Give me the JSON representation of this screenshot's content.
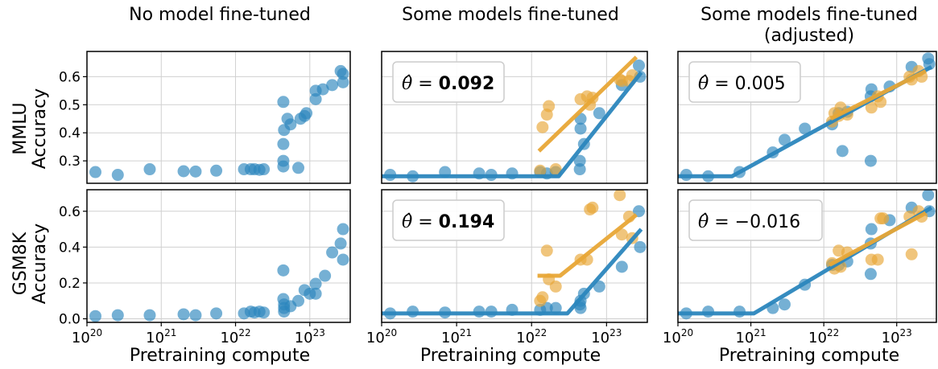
{
  "columns": [
    "No model fine-tuned",
    "Some models fine-tuned",
    "Some models fine-tuned\n(adjusted)"
  ],
  "rows": [
    {
      "label_line1": "MMLU",
      "label_line2": "Accuracy"
    },
    {
      "label_line1": "GSM8K",
      "label_line2": "Accuracy"
    }
  ],
  "xlabel": "Pretraining compute",
  "colors": {
    "base": "#2b86bd",
    "finetuned": "#e8a636"
  },
  "chart_data": [
    {
      "type": "scatter",
      "row": "MMLU",
      "column": "No model fine-tuned",
      "xlim": [
        1e+20,
        3.5e+23
      ],
      "ylim": [
        0.22,
        0.69
      ],
      "yticks": [
        0.3,
        0.4,
        0.5,
        0.6
      ],
      "xticks": [
        "10^20",
        "10^21",
        "10^22",
        "10^23"
      ],
      "xscale": "log",
      "grid": true,
      "annotation": null,
      "series": [
        {
          "name": "base",
          "points": [
            [
              1.3e+20,
              0.26
            ],
            [
              2.6e+20,
              0.25
            ],
            [
              7e+20,
              0.27
            ],
            [
              2e+21,
              0.263
            ],
            [
              2.9e+21,
              0.262
            ],
            [
              5.5e+21,
              0.265
            ],
            [
              1.3e+22,
              0.27
            ],
            [
              1.6e+22,
              0.27
            ],
            [
              1.8e+22,
              0.27
            ],
            [
              2.1e+22,
              0.268
            ],
            [
              2.4e+22,
              0.27
            ],
            [
              4.4e+22,
              0.51
            ],
            [
              4.5e+22,
              0.41
            ],
            [
              4.4e+22,
              0.36
            ],
            [
              4.4e+22,
              0.3
            ],
            [
              4.4e+22,
              0.28
            ],
            [
              5e+22,
              0.45
            ],
            [
              5.5e+22,
              0.43
            ],
            [
              7e+22,
              0.275
            ],
            [
              7.5e+22,
              0.45
            ],
            [
              8.5e+22,
              0.46
            ],
            [
              9e+22,
              0.47
            ],
            [
              1.2e+23,
              0.55
            ],
            [
              1.2e+23,
              0.52
            ],
            [
              1.5e+23,
              0.555
            ],
            [
              2e+23,
              0.57
            ],
            [
              2.6e+23,
              0.62
            ],
            [
              2.8e+23,
              0.61
            ],
            [
              2.8e+23,
              0.58
            ]
          ]
        }
      ],
      "fits": []
    },
    {
      "type": "scatter",
      "row": "MMLU",
      "column": "Some models fine-tuned",
      "xlim": [
        1e+20,
        3.5e+23
      ],
      "ylim": [
        0.22,
        0.69
      ],
      "yticks": [
        0.3,
        0.4,
        0.5,
        0.6
      ],
      "xticks": [
        "10^20",
        "10^21",
        "10^22",
        "10^23"
      ],
      "xscale": "log",
      "grid": true,
      "annotation": {
        "symbol": "θ̂ =",
        "value": "0.092",
        "bold": true
      },
      "series": [
        {
          "name": "base",
          "points": [
            [
              1.3e+20,
              0.25
            ],
            [
              2.6e+20,
              0.245
            ],
            [
              7e+20,
              0.26
            ],
            [
              2e+21,
              0.255
            ],
            [
              2.9e+21,
              0.25
            ],
            [
              5.5e+21,
              0.255
            ],
            [
              1.3e+22,
              0.26
            ],
            [
              1.6e+22,
              0.255
            ],
            [
              2.1e+22,
              0.26
            ],
            [
              4.4e+22,
              0.3
            ],
            [
              4.4e+22,
              0.27
            ],
            [
              4.5e+22,
              0.415
            ],
            [
              5e+22,
              0.36
            ],
            [
              4.5e+22,
              0.45
            ],
            [
              8e+22,
              0.47
            ],
            [
              1.6e+23,
              0.57
            ],
            [
              2.7e+23,
              0.64
            ],
            [
              2.8e+23,
              0.6
            ]
          ]
        },
        {
          "name": "finetuned",
          "points": [
            [
              1.3e+22,
              0.265
            ],
            [
              1.4e+22,
              0.42
            ],
            [
              1.6e+22,
              0.465
            ],
            [
              1.7e+22,
              0.495
            ],
            [
              2.1e+22,
              0.27
            ],
            [
              4.5e+22,
              0.52
            ],
            [
              5.5e+22,
              0.53
            ],
            [
              6e+22,
              0.5
            ],
            [
              6.5e+22,
              0.525
            ],
            [
              1.5e+23,
              0.59
            ],
            [
              1.6e+23,
              0.585
            ],
            [
              2e+23,
              0.585
            ],
            [
              2.2e+23,
              0.605
            ]
          ]
        }
      ],
      "fits": [
        {
          "series": "base",
          "points": [
            [
              1e+20,
              0.245
            ],
            [
              2.3e+22,
              0.245
            ],
            [
              2.9e+23,
              0.615
            ]
          ]
        },
        {
          "series": "finetuned",
          "points": [
            [
              1.25e+22,
              0.335
            ],
            [
              2.5e+23,
              0.67
            ]
          ]
        }
      ]
    },
    {
      "type": "scatter",
      "row": "MMLU",
      "column": "Some models fine-tuned (adjusted)",
      "xlim": [
        1e+20,
        3.5e+23
      ],
      "ylim": [
        0.22,
        0.69
      ],
      "yticks": [
        0.3,
        0.4,
        0.5,
        0.6
      ],
      "xticks": [
        "10^20",
        "10^21",
        "10^22",
        "10^23"
      ],
      "xscale": "log",
      "grid": true,
      "annotation": {
        "symbol": "θ̂ =",
        "value": "0.005",
        "bold": false
      },
      "series": [
        {
          "name": "base",
          "points": [
            [
              1.3e+20,
              0.25
            ],
            [
              2.6e+20,
              0.245
            ],
            [
              7e+20,
              0.26
            ],
            [
              2e+21,
              0.33
            ],
            [
              2.9e+21,
              0.375
            ],
            [
              5.5e+21,
              0.415
            ],
            [
              1.3e+22,
              0.43
            ],
            [
              1.6e+22,
              0.47
            ],
            [
              1.8e+22,
              0.335
            ],
            [
              2.1e+22,
              0.475
            ],
            [
              4.4e+22,
              0.53
            ],
            [
              4.4e+22,
              0.3
            ],
            [
              4.5e+22,
              0.555
            ],
            [
              8e+22,
              0.565
            ],
            [
              1.6e+23,
              0.635
            ],
            [
              2.7e+23,
              0.665
            ],
            [
              2.8e+23,
              0.645
            ]
          ]
        },
        {
          "name": "finetuned",
          "points": [
            [
              1.3e+22,
              0.44
            ],
            [
              1.4e+22,
              0.47
            ],
            [
              1.6e+22,
              0.46
            ],
            [
              1.7e+22,
              0.49
            ],
            [
              2.1e+22,
              0.465
            ],
            [
              4.5e+22,
              0.49
            ],
            [
              5.5e+22,
              0.53
            ],
            [
              6e+22,
              0.51
            ],
            [
              1.5e+23,
              0.6
            ],
            [
              1.6e+23,
              0.59
            ],
            [
              2e+23,
              0.62
            ],
            [
              2.2e+23,
              0.6
            ]
          ]
        }
      ],
      "fits": [
        {
          "series": "base",
          "points": [
            [
              1e+20,
              0.245
            ],
            [
              5.5e+20,
              0.245
            ],
            [
              3e+23,
              0.635
            ]
          ]
        },
        {
          "series": "finetuned",
          "points": [
            [
              1.25e+22,
              0.45
            ],
            [
              2.5e+23,
              0.62
            ]
          ]
        }
      ]
    },
    {
      "type": "scatter",
      "row": "GSM8K",
      "column": "No model fine-tuned",
      "xlim": [
        1e+20,
        3.5e+23
      ],
      "ylim": [
        -0.02,
        0.72
      ],
      "yticks": [
        0.0,
        0.2,
        0.4,
        0.6
      ],
      "xticks": [
        "10^20",
        "10^21",
        "10^22",
        "10^23"
      ],
      "xscale": "log",
      "grid": true,
      "annotation": null,
      "series": [
        {
          "name": "base",
          "points": [
            [
              1.3e+20,
              0.015
            ],
            [
              2.6e+20,
              0.02
            ],
            [
              7e+20,
              0.02
            ],
            [
              2e+21,
              0.025
            ],
            [
              2.9e+21,
              0.02
            ],
            [
              5.5e+21,
              0.03
            ],
            [
              1.3e+22,
              0.03
            ],
            [
              1.6e+22,
              0.04
            ],
            [
              1.8e+22,
              0.035
            ],
            [
              2.1e+22,
              0.04
            ],
            [
              2.4e+22,
              0.035
            ],
            [
              4.4e+22,
              0.27
            ],
            [
              4.4e+22,
              0.11
            ],
            [
              4.5e+22,
              0.08
            ],
            [
              4.5e+22,
              0.06
            ],
            [
              4.5e+22,
              0.04
            ],
            [
              5.5e+22,
              0.07
            ],
            [
              7e+22,
              0.1
            ],
            [
              8.5e+22,
              0.16
            ],
            [
              1e+23,
              0.14
            ],
            [
              1.2e+23,
              0.195
            ],
            [
              1.2e+23,
              0.14
            ],
            [
              1.6e+23,
              0.24
            ],
            [
              2e+23,
              0.37
            ],
            [
              2.6e+23,
              0.42
            ],
            [
              2.8e+23,
              0.5
            ],
            [
              2.8e+23,
              0.33
            ]
          ]
        }
      ],
      "fits": []
    },
    {
      "type": "scatter",
      "row": "GSM8K",
      "column": "Some models fine-tuned",
      "xlim": [
        1e+20,
        3.5e+23
      ],
      "ylim": [
        -0.02,
        0.72
      ],
      "yticks": [
        0.0,
        0.2,
        0.4,
        0.6
      ],
      "xticks": [
        "10^20",
        "10^21",
        "10^22",
        "10^23"
      ],
      "xscale": "log",
      "grid": true,
      "annotation": {
        "symbol": "θ̂ =",
        "value": "0.194",
        "bold": true
      },
      "series": [
        {
          "name": "base",
          "points": [
            [
              1.3e+20,
              0.03
            ],
            [
              2.6e+20,
              0.04
            ],
            [
              7e+20,
              0.035
            ],
            [
              2e+21,
              0.04
            ],
            [
              2.9e+21,
              0.04
            ],
            [
              5.5e+21,
              0.05
            ],
            [
              1.3e+22,
              0.05
            ],
            [
              1.6e+22,
              0.06
            ],
            [
              2.1e+22,
              0.06
            ],
            [
              4.4e+22,
              0.08
            ],
            [
              4.5e+22,
              0.1
            ],
            [
              5e+22,
              0.14
            ],
            [
              4.5e+22,
              0.06
            ],
            [
              8e+22,
              0.18
            ],
            [
              1.6e+23,
              0.29
            ],
            [
              2.7e+23,
              0.6
            ],
            [
              2.8e+23,
              0.4
            ]
          ]
        },
        {
          "name": "finetuned",
          "points": [
            [
              1.3e+22,
              0.1
            ],
            [
              1.4e+22,
              0.12
            ],
            [
              1.6e+22,
              0.38
            ],
            [
              1.7e+22,
              0.22
            ],
            [
              2.1e+22,
              0.18
            ],
            [
              4.5e+22,
              0.33
            ],
            [
              5.5e+22,
              0.33
            ],
            [
              6e+22,
              0.61
            ],
            [
              6.5e+22,
              0.62
            ],
            [
              1.5e+23,
              0.69
            ],
            [
              1.6e+23,
              0.47
            ],
            [
              2e+23,
              0.57
            ],
            [
              2.2e+23,
              0.45
            ]
          ]
        }
      ],
      "fits": [
        {
          "series": "base",
          "points": [
            [
              1e+20,
              0.03
            ],
            [
              3e+22,
              0.03
            ],
            [
              2.9e+23,
              0.5
            ]
          ]
        },
        {
          "series": "finetuned",
          "points": [
            [
              1.2e+22,
              0.24
            ],
            [
              2.4e+22,
              0.24
            ],
            [
              2.5e+23,
              0.58
            ]
          ]
        }
      ]
    },
    {
      "type": "scatter",
      "row": "GSM8K",
      "column": "Some models fine-tuned (adjusted)",
      "xlim": [
        1e+20,
        3.5e+23
      ],
      "ylim": [
        -0.02,
        0.72
      ],
      "yticks": [
        0.0,
        0.2,
        0.4,
        0.6
      ],
      "xticks": [
        "10^20",
        "10^21",
        "10^22",
        "10^23"
      ],
      "xscale": "log",
      "grid": true,
      "annotation": {
        "symbol": "θ̂ =",
        "value": "−0.016",
        "bold": false
      },
      "series": [
        {
          "name": "base",
          "points": [
            [
              1.3e+20,
              0.03
            ],
            [
              2.6e+20,
              0.04
            ],
            [
              7e+20,
              0.04
            ],
            [
              2e+21,
              0.06
            ],
            [
              2.9e+21,
              0.08
            ],
            [
              5.5e+21,
              0.19
            ],
            [
              1.3e+22,
              0.3
            ],
            [
              1.6e+22,
              0.3
            ],
            [
              2.1e+22,
              0.32
            ],
            [
              4.4e+22,
              0.42
            ],
            [
              4.4e+22,
              0.25
            ],
            [
              4.5e+22,
              0.5
            ],
            [
              8e+22,
              0.55
            ],
            [
              1.6e+23,
              0.62
            ],
            [
              2.7e+23,
              0.69
            ],
            [
              2.8e+23,
              0.6
            ]
          ]
        },
        {
          "name": "finetuned",
          "points": [
            [
              1.3e+22,
              0.31
            ],
            [
              1.4e+22,
              0.28
            ],
            [
              1.6e+22,
              0.38
            ],
            [
              1.7e+22,
              0.29
            ],
            [
              2.1e+22,
              0.37
            ],
            [
              4.5e+22,
              0.33
            ],
            [
              5.5e+22,
              0.33
            ],
            [
              6e+22,
              0.56
            ],
            [
              6.5e+22,
              0.56
            ],
            [
              1.5e+23,
              0.57
            ],
            [
              1.6e+23,
              0.36
            ],
            [
              2e+23,
              0.6
            ],
            [
              2.2e+23,
              0.57
            ]
          ]
        }
      ],
      "fits": [
        {
          "series": "base",
          "points": [
            [
              1e+20,
              0.03
            ],
            [
              1.1e+21,
              0.03
            ],
            [
              3e+23,
              0.62
            ]
          ]
        },
        {
          "series": "finetuned",
          "points": [
            [
              1.2e+22,
              0.3
            ],
            [
              2.5e+23,
              0.59
            ]
          ]
        }
      ]
    }
  ]
}
